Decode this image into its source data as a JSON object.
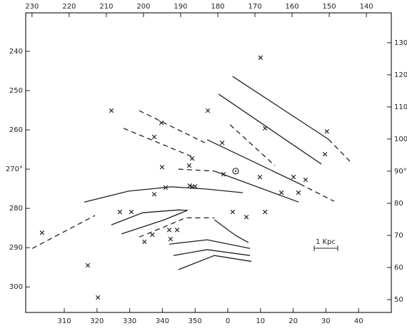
{
  "chart_data": {
    "type": "scatter",
    "marker": "x",
    "color": "#222222",
    "xlim": [
      298.2,
      410
    ],
    "ylim": [
      306.5,
      230.2
    ],
    "x2lim": [
      231.7,
      133.3
    ],
    "y2lim": [
      46,
      139.3
    ],
    "xticks": [
      310,
      320,
      330,
      340,
      350,
      {
        "value": 360,
        "label": "0"
      },
      {
        "value": 370,
        "label": "10"
      },
      {
        "value": 380,
        "label": "20"
      },
      {
        "value": 390,
        "label": "30"
      },
      {
        "value": 400,
        "label": "40"
      }
    ],
    "yticks": [
      240,
      250,
      260,
      {
        "value": 270,
        "label": "270°"
      },
      280,
      290,
      300
    ],
    "x2ticks": [
      230,
      220,
      210,
      200,
      190,
      180,
      170,
      160,
      150,
      140
    ],
    "y2ticks": [
      50,
      60,
      70,
      80,
      {
        "value": 90,
        "label": "90°"
      },
      100,
      110,
      120,
      130
    ],
    "x": [
      303.2,
      317.2,
      320.3,
      324.4,
      327.0,
      330.5,
      334.5,
      336.9,
      337.5,
      337.5,
      339.7,
      339.9,
      341.0,
      342.1,
      342.5,
      344.5,
      348.2,
      348.4,
      349.1,
      349.1,
      350.0,
      353.9,
      358.3,
      358.7,
      361.5,
      365.7,
      370.0,
      369.8,
      371.4,
      371.4,
      376.4,
      380.1,
      381.6,
      383.8,
      389.7,
      390.3
    ],
    "y": [
      286.2,
      294.5,
      302.7,
      255.1,
      280.9,
      280.9,
      288.5,
      286.7,
      276.4,
      261.8,
      258.2,
      269.5,
      274.7,
      285.5,
      287.8,
      285.5,
      269.1,
      274.2,
      267.3,
      274.5,
      274.4,
      255.1,
      263.3,
      271.3,
      280.9,
      282.2,
      241.6,
      272.0,
      259.6,
      280.9,
      276.0,
      272.0,
      276.0,
      272.7,
      266.2,
      260.4
    ],
    "sun": {
      "x": 362.4,
      "y": 270.5
    },
    "lines": [
      {
        "dashed": false,
        "x": [
          361.5,
          390.8
        ],
        "y": [
          246.4,
          262.4
        ]
      },
      {
        "dashed": true,
        "x": [
          390.8,
          397.8
        ],
        "y": [
          262.4,
          268.4
        ]
      },
      {
        "dashed": false,
        "x": [
          357.2,
          388.6
        ],
        "y": [
          250.9,
          268.7
        ]
      },
      {
        "dashed": true,
        "x": [
          360.7,
          374.4
        ],
        "y": [
          258.7,
          269.1
        ]
      },
      {
        "dashed": false,
        "x": [
          353.7,
          382.1
        ],
        "y": [
          262.5,
          273.8
        ]
      },
      {
        "dashed": true,
        "x": [
          382.1,
          392.5
        ],
        "y": [
          273.8,
          278.2
        ]
      },
      {
        "dashed": true,
        "x": [
          344.9,
          355.9
        ],
        "y": [
          270.0,
          270.5
        ]
      },
      {
        "dashed": false,
        "x": [
          355.9,
          381.7
        ],
        "y": [
          270.5,
          278.4
        ]
      },
      {
        "dashed": false,
        "x": [
          316.1,
          329.7,
          342.8,
          353.7,
          364.6
        ],
        "y": [
          278.4,
          275.6,
          274.5,
          275.1,
          276.0
        ]
      },
      {
        "dashed": true,
        "x": [
          300.2,
          319.4
        ],
        "y": [
          290.2,
          281.8
        ]
      },
      {
        "dashed": true,
        "x": [
          332.9,
          353.0
        ],
        "y": [
          255.1,
          263.3
        ]
      },
      {
        "dashed": true,
        "x": [
          328.1,
          349.3
        ],
        "y": [
          259.6,
          266.9
        ]
      },
      {
        "dashed": false,
        "x": [
          324.4,
          334.0,
          344.9,
          347.8
        ],
        "y": [
          284.2,
          281.1,
          280.4,
          280.5
        ]
      },
      {
        "dashed": false,
        "x": [
          327.5,
          340.6,
          347.6
        ],
        "y": [
          286.5,
          282.9,
          280.5
        ]
      },
      {
        "dashed": true,
        "x": [
          332.9,
          340.6,
          347.1,
          355.9
        ],
        "y": [
          287.3,
          284.7,
          282.4,
          282.4
        ]
      },
      {
        "dashed": false,
        "x": [
          355.9,
          362.4,
          366.3
        ],
        "y": [
          282.9,
          286.9,
          288.7
        ]
      },
      {
        "dashed": false,
        "x": [
          342.1,
          353.7,
          366.8
        ],
        "y": [
          289.1,
          288.0,
          290.2
        ]
      },
      {
        "dashed": false,
        "x": [
          343.4,
          353.7,
          366.8
        ],
        "y": [
          292.0,
          290.5,
          292.0
        ]
      },
      {
        "dashed": false,
        "x": [
          344.9,
          355.9,
          367.2
        ],
        "y": [
          295.6,
          292.0,
          293.5
        ]
      }
    ],
    "annotation": "1 Kpc"
  }
}
